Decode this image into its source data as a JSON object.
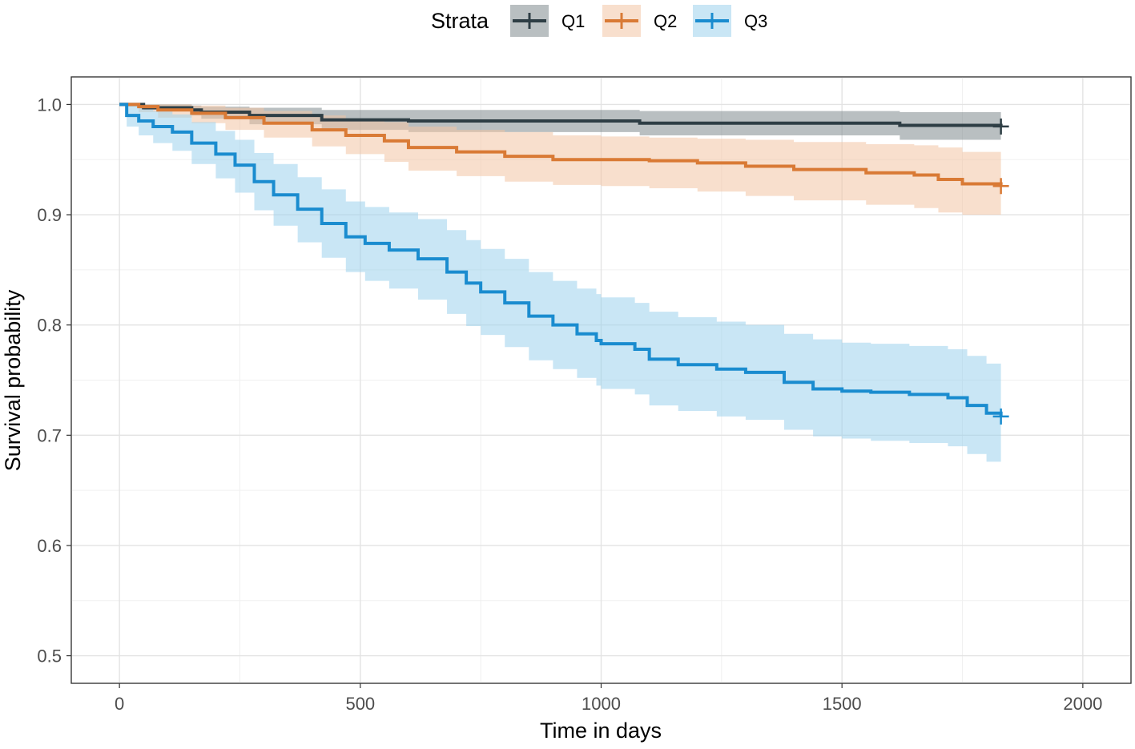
{
  "chart_data": {
    "type": "line",
    "subtype": "kaplan-meier",
    "title": "",
    "xlabel": "Time in days",
    "ylabel": "Survival probability",
    "xlim": [
      -100,
      2100
    ],
    "ylim": [
      0.475,
      1.025
    ],
    "xticks": [
      0,
      500,
      1000,
      1500,
      2000
    ],
    "xtick_labels": [
      "0",
      "500",
      "1000",
      "1500",
      "2000"
    ],
    "yticks": [
      0.5,
      0.6,
      0.7,
      0.8,
      0.9,
      1.0
    ],
    "ytick_labels": [
      "0.5",
      "0.6",
      "0.7",
      "0.8",
      "0.9",
      "1.0"
    ],
    "grid": true,
    "legend": {
      "title": "Strata",
      "position": "top"
    },
    "series": [
      {
        "name": "Q1",
        "color": "#2e3e45",
        "band_color": "#7f8a8e",
        "x": [
          0,
          50,
          150,
          170,
          270,
          420,
          600,
          1080,
          1620,
          1830
        ],
        "y": [
          1.0,
          0.997,
          0.995,
          0.993,
          0.99,
          0.986,
          0.985,
          0.983,
          0.981,
          0.98
        ],
        "lower": [
          1.0,
          0.995,
          0.99,
          0.987,
          0.982,
          0.977,
          0.975,
          0.972,
          0.968,
          0.967
        ],
        "upper": [
          1.0,
          1.0,
          0.999,
          0.998,
          0.997,
          0.995,
          0.995,
          0.994,
          0.993,
          0.993
        ],
        "censor_x": 1830
      },
      {
        "name": "Q2",
        "color": "#d97a35",
        "band_color": "#f2c4a4",
        "x": [
          0,
          40,
          80,
          150,
          220,
          300,
          400,
          470,
          550,
          600,
          700,
          800,
          900,
          1000,
          1100,
          1200,
          1300,
          1400,
          1550,
          1650,
          1700,
          1750,
          1830
        ],
        "y": [
          1.0,
          0.998,
          0.995,
          0.992,
          0.988,
          0.983,
          0.977,
          0.972,
          0.967,
          0.961,
          0.957,
          0.953,
          0.95,
          0.95,
          0.949,
          0.947,
          0.944,
          0.941,
          0.938,
          0.936,
          0.932,
          0.928,
          0.926
        ],
        "lower": [
          1.0,
          0.993,
          0.988,
          0.983,
          0.977,
          0.97,
          0.962,
          0.955,
          0.948,
          0.94,
          0.935,
          0.93,
          0.927,
          0.926,
          0.924,
          0.921,
          0.917,
          0.913,
          0.909,
          0.906,
          0.902,
          0.9,
          0.9
        ],
        "upper": [
          1.0,
          1.0,
          1.0,
          0.999,
          0.997,
          0.994,
          0.99,
          0.987,
          0.984,
          0.98,
          0.977,
          0.975,
          0.972,
          0.971,
          0.97,
          0.969,
          0.968,
          0.966,
          0.964,
          0.963,
          0.961,
          0.957,
          0.955
        ]
      },
      {
        "name": "Q3",
        "color": "#1a8ccf",
        "band_color": "#9dd1ec",
        "x": [
          0,
          15,
          40,
          70,
          110,
          150,
          200,
          240,
          280,
          320,
          370,
          420,
          470,
          510,
          560,
          620,
          680,
          720,
          750,
          800,
          850,
          900,
          950,
          990,
          1000,
          1070,
          1100,
          1160,
          1240,
          1300,
          1380,
          1440,
          1500,
          1560,
          1640,
          1720,
          1760,
          1800,
          1830
        ],
        "y": [
          1.0,
          0.99,
          0.985,
          0.98,
          0.975,
          0.965,
          0.955,
          0.945,
          0.93,
          0.918,
          0.905,
          0.892,
          0.88,
          0.874,
          0.868,
          0.86,
          0.848,
          0.838,
          0.83,
          0.82,
          0.808,
          0.8,
          0.792,
          0.786,
          0.783,
          0.778,
          0.769,
          0.764,
          0.76,
          0.757,
          0.748,
          0.742,
          0.74,
          0.739,
          0.737,
          0.734,
          0.727,
          0.72,
          0.717
        ],
        "lower": [
          1.0,
          0.98,
          0.972,
          0.965,
          0.958,
          0.946,
          0.933,
          0.92,
          0.904,
          0.89,
          0.875,
          0.861,
          0.848,
          0.84,
          0.833,
          0.823,
          0.81,
          0.799,
          0.791,
          0.78,
          0.768,
          0.76,
          0.752,
          0.745,
          0.742,
          0.737,
          0.727,
          0.722,
          0.717,
          0.714,
          0.705,
          0.699,
          0.697,
          0.695,
          0.693,
          0.69,
          0.683,
          0.676,
          0.674
        ],
        "upper": [
          1.0,
          1.0,
          0.997,
          0.994,
          0.991,
          0.984,
          0.976,
          0.968,
          0.956,
          0.946,
          0.934,
          0.923,
          0.912,
          0.907,
          0.902,
          0.896,
          0.886,
          0.877,
          0.869,
          0.86,
          0.848,
          0.84,
          0.833,
          0.828,
          0.825,
          0.82,
          0.812,
          0.807,
          0.803,
          0.8,
          0.792,
          0.787,
          0.784,
          0.783,
          0.781,
          0.778,
          0.772,
          0.765,
          0.762
        ]
      }
    ]
  }
}
